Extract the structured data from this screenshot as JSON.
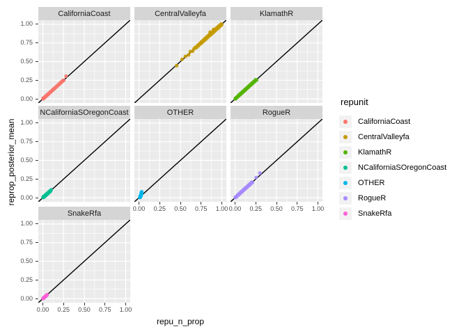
{
  "legend": {
    "title": "repunit",
    "entries": [
      {
        "label": "CaliforniaCoast",
        "color": "#F8766D"
      },
      {
        "label": "CentralValleyfa",
        "color": "#C49A00"
      },
      {
        "label": "KlamathR",
        "color": "#53B400"
      },
      {
        "label": "NCaliforniaSOregonCoast",
        "color": "#00C094"
      },
      {
        "label": "OTHER",
        "color": "#00B6EB"
      },
      {
        "label": "RogueR",
        "color": "#A58AFF"
      },
      {
        "label": "SnakeRfa",
        "color": "#FB61D7"
      }
    ]
  },
  "chart_data": {
    "type": "scatter",
    "title": "",
    "xlabel": "repu_n_prop",
    "ylabel": "reprop_posterior_mean",
    "facet_variable": "repunit",
    "xlim": [
      0,
      1
    ],
    "ylim": [
      0,
      1
    ],
    "x_tick_values": [
      0,
      0.25,
      0.5,
      0.75,
      1
    ],
    "y_tick_values": [
      1,
      0.75,
      0.5,
      0.25,
      0
    ],
    "x_tick_labels": [
      "0.00",
      "0.25",
      "0.50",
      "0.75",
      "1.00"
    ],
    "y_tick_labels": [
      "1.00",
      "0.75",
      "0.50",
      "0.25",
      "0.00"
    ],
    "minor_tick_values": [
      0.125,
      0.375,
      0.625,
      0.875
    ],
    "grid": true,
    "legend_position": "right",
    "reference_line": "y = x",
    "theme": {
      "panel_bg": "#EBEBEB",
      "grid_color": "#FFFFFF",
      "strip_bg": "#D5D5D5",
      "abline_color": "#000000",
      "tick_text_color": "#4D4D4D"
    },
    "facets": [
      {
        "label": "CaliforniaCoast",
        "color": "#F8766D",
        "row": 0,
        "col": 0,
        "points": [
          [
            0.002,
            0.004
          ],
          [
            0.004,
            0.002
          ],
          [
            0.006,
            0.008
          ],
          [
            0.008,
            0.005
          ],
          [
            0.01,
            0.012
          ],
          [
            0.012,
            0.01
          ],
          [
            0.014,
            0.016
          ],
          [
            0.016,
            0.013
          ],
          [
            0.018,
            0.02
          ],
          [
            0.02,
            0.022
          ],
          [
            0.022,
            0.018
          ],
          [
            0.025,
            0.027
          ],
          [
            0.028,
            0.024
          ],
          [
            0.03,
            0.033
          ],
          [
            0.033,
            0.03
          ],
          [
            0.036,
            0.038
          ],
          [
            0.04,
            0.037
          ],
          [
            0.044,
            0.046
          ],
          [
            0.048,
            0.045
          ],
          [
            0.052,
            0.055
          ],
          [
            0.057,
            0.053
          ],
          [
            0.062,
            0.065
          ],
          [
            0.068,
            0.064
          ],
          [
            0.075,
            0.078
          ],
          [
            0.082,
            0.079
          ],
          [
            0.09,
            0.094
          ],
          [
            0.098,
            0.094
          ],
          [
            0.106,
            0.11
          ],
          [
            0.115,
            0.111
          ],
          [
            0.124,
            0.128
          ],
          [
            0.133,
            0.129
          ],
          [
            0.142,
            0.147
          ],
          [
            0.152,
            0.148
          ],
          [
            0.162,
            0.166
          ],
          [
            0.172,
            0.168
          ],
          [
            0.182,
            0.187
          ],
          [
            0.192,
            0.188
          ],
          [
            0.202,
            0.207
          ],
          [
            0.212,
            0.208
          ],
          [
            0.222,
            0.227
          ],
          [
            0.232,
            0.228
          ],
          [
            0.242,
            0.247
          ],
          [
            0.252,
            0.248
          ],
          [
            0.28,
            0.305
          ]
        ]
      },
      {
        "label": "CentralValleyfa",
        "color": "#C49A00",
        "row": 0,
        "col": 1,
        "points": [
          [
            0.455,
            0.445
          ],
          [
            0.52,
            0.53
          ],
          [
            0.56,
            0.57
          ],
          [
            0.6,
            0.59
          ],
          [
            0.62,
            0.635
          ],
          [
            0.648,
            0.64
          ],
          [
            0.665,
            0.672
          ],
          [
            0.68,
            0.69
          ],
          [
            0.695,
            0.688
          ],
          [
            0.708,
            0.718
          ],
          [
            0.72,
            0.712
          ],
          [
            0.732,
            0.742
          ],
          [
            0.744,
            0.736
          ],
          [
            0.755,
            0.766
          ],
          [
            0.766,
            0.758
          ],
          [
            0.777,
            0.788
          ],
          [
            0.788,
            0.78
          ],
          [
            0.798,
            0.81
          ],
          [
            0.808,
            0.8
          ],
          [
            0.818,
            0.83
          ],
          [
            0.828,
            0.822
          ],
          [
            0.838,
            0.85
          ],
          [
            0.848,
            0.842
          ],
          [
            0.858,
            0.872
          ],
          [
            0.868,
            0.86
          ],
          [
            0.878,
            0.892
          ],
          [
            0.888,
            0.88
          ],
          [
            0.898,
            0.912
          ],
          [
            0.908,
            0.9
          ],
          [
            0.918,
            0.932
          ],
          [
            0.928,
            0.922
          ],
          [
            0.938,
            0.952
          ],
          [
            0.948,
            0.94
          ],
          [
            0.958,
            0.972
          ],
          [
            0.968,
            0.96
          ],
          [
            0.978,
            0.99
          ],
          [
            0.988,
            0.982
          ],
          [
            0.995,
            1.005
          ],
          [
            1.0,
            0.995
          ],
          [
            0.86,
            0.895
          ],
          [
            0.9,
            0.93
          ]
        ]
      },
      {
        "label": "KlamathR",
        "color": "#53B400",
        "row": 0,
        "col": 2,
        "points": [
          [
            0.003,
            0.001
          ],
          [
            0.006,
            0.008
          ],
          [
            0.01,
            0.007
          ],
          [
            0.014,
            0.016
          ],
          [
            0.018,
            0.015
          ],
          [
            0.022,
            0.025
          ],
          [
            0.027,
            0.023
          ],
          [
            0.032,
            0.035
          ],
          [
            0.037,
            0.033
          ],
          [
            0.042,
            0.046
          ],
          [
            0.048,
            0.044
          ],
          [
            0.054,
            0.058
          ],
          [
            0.06,
            0.056
          ],
          [
            0.066,
            0.071
          ],
          [
            0.073,
            0.068
          ],
          [
            0.08,
            0.085
          ],
          [
            0.087,
            0.082
          ],
          [
            0.094,
            0.1
          ],
          [
            0.102,
            0.097
          ],
          [
            0.11,
            0.116
          ],
          [
            0.118,
            0.113
          ],
          [
            0.126,
            0.133
          ],
          [
            0.135,
            0.13
          ],
          [
            0.144,
            0.151
          ],
          [
            0.153,
            0.148
          ],
          [
            0.162,
            0.17
          ],
          [
            0.172,
            0.166
          ],
          [
            0.182,
            0.19
          ],
          [
            0.192,
            0.186
          ],
          [
            0.202,
            0.211
          ],
          [
            0.213,
            0.206
          ],
          [
            0.224,
            0.233
          ],
          [
            0.235,
            0.228
          ],
          [
            0.247,
            0.256
          ],
          [
            0.26,
            0.252
          ]
        ]
      },
      {
        "label": "NCaliforniaSOregonCoast",
        "color": "#00C094",
        "row": 1,
        "col": 0,
        "points": [
          [
            0.002,
            0.006
          ],
          [
            0.004,
            0.01
          ],
          [
            0.006,
            0.003
          ],
          [
            0.008,
            0.014
          ],
          [
            0.01,
            0.006
          ],
          [
            0.012,
            0.018
          ],
          [
            0.014,
            0.01
          ],
          [
            0.016,
            0.022
          ],
          [
            0.018,
            0.014
          ],
          [
            0.02,
            0.026
          ],
          [
            0.022,
            0.018
          ],
          [
            0.025,
            0.03
          ],
          [
            0.028,
            0.022
          ],
          [
            0.031,
            0.036
          ],
          [
            0.034,
            0.028
          ],
          [
            0.037,
            0.042
          ],
          [
            0.04,
            0.034
          ],
          [
            0.044,
            0.048
          ],
          [
            0.048,
            0.042
          ],
          [
            0.052,
            0.057
          ],
          [
            0.057,
            0.051
          ],
          [
            0.062,
            0.067
          ],
          [
            0.068,
            0.062
          ],
          [
            0.074,
            0.08
          ],
          [
            0.08,
            0.074
          ],
          [
            0.087,
            0.092
          ],
          [
            0.094,
            0.088
          ],
          [
            0.1,
            0.106
          ]
        ]
      },
      {
        "label": "OTHER",
        "color": "#00B6EB",
        "row": 1,
        "col": 1,
        "points": [
          [
            0.01,
            0.002
          ],
          [
            0.015,
            0.005
          ],
          [
            0.012,
            0.008
          ],
          [
            0.018,
            0.01
          ],
          [
            0.014,
            0.013
          ],
          [
            0.02,
            0.016
          ],
          [
            0.016,
            0.019
          ],
          [
            0.022,
            0.022
          ],
          [
            0.018,
            0.025
          ],
          [
            0.024,
            0.028
          ],
          [
            0.02,
            0.031
          ],
          [
            0.026,
            0.034
          ],
          [
            0.022,
            0.037
          ],
          [
            0.028,
            0.04
          ],
          [
            0.024,
            0.043
          ],
          [
            0.03,
            0.047
          ],
          [
            0.025,
            0.051
          ],
          [
            0.031,
            0.055
          ],
          [
            0.027,
            0.06
          ],
          [
            0.032,
            0.065
          ],
          [
            0.028,
            0.072
          ],
          [
            0.033,
            0.08
          ]
        ]
      },
      {
        "label": "RogueR",
        "color": "#A58AFF",
        "row": 1,
        "col": 2,
        "points": [
          [
            0.002,
            0.004
          ],
          [
            0.005,
            0.002
          ],
          [
            0.008,
            0.01
          ],
          [
            0.012,
            0.008
          ],
          [
            0.016,
            0.018
          ],
          [
            0.02,
            0.016
          ],
          [
            0.024,
            0.027
          ],
          [
            0.028,
            0.024
          ],
          [
            0.033,
            0.036
          ],
          [
            0.038,
            0.033
          ],
          [
            0.043,
            0.047
          ],
          [
            0.048,
            0.044
          ],
          [
            0.054,
            0.058
          ],
          [
            0.06,
            0.055
          ],
          [
            0.066,
            0.071
          ],
          [
            0.072,
            0.067
          ],
          [
            0.079,
            0.084
          ],
          [
            0.086,
            0.081
          ],
          [
            0.093,
            0.099
          ],
          [
            0.1,
            0.095
          ],
          [
            0.108,
            0.114
          ],
          [
            0.116,
            0.111
          ],
          [
            0.124,
            0.13
          ],
          [
            0.132,
            0.127
          ],
          [
            0.141,
            0.147
          ],
          [
            0.15,
            0.144
          ],
          [
            0.159,
            0.166
          ],
          [
            0.168,
            0.162
          ],
          [
            0.178,
            0.185
          ],
          [
            0.188,
            0.182
          ],
          [
            0.198,
            0.206
          ],
          [
            0.21,
            0.204
          ],
          [
            0.255,
            0.27
          ],
          [
            0.3,
            0.33
          ]
        ]
      },
      {
        "label": "SnakeRfa",
        "color": "#FB61D7",
        "row": 2,
        "col": 0,
        "points": [
          [
            0.002,
            0.001
          ],
          [
            0.004,
            0.005
          ],
          [
            0.006,
            0.003
          ],
          [
            0.008,
            0.009
          ],
          [
            0.01,
            0.007
          ],
          [
            0.012,
            0.013
          ],
          [
            0.014,
            0.011
          ],
          [
            0.016,
            0.017
          ],
          [
            0.018,
            0.015
          ],
          [
            0.02,
            0.021
          ],
          [
            0.022,
            0.019
          ],
          [
            0.025,
            0.026
          ],
          [
            0.028,
            0.024
          ],
          [
            0.031,
            0.032
          ],
          [
            0.034,
            0.03
          ],
          [
            0.037,
            0.039
          ],
          [
            0.04,
            0.036
          ],
          [
            0.044,
            0.046
          ],
          [
            0.048,
            0.044
          ],
          [
            0.052,
            0.054
          ]
        ]
      }
    ]
  }
}
